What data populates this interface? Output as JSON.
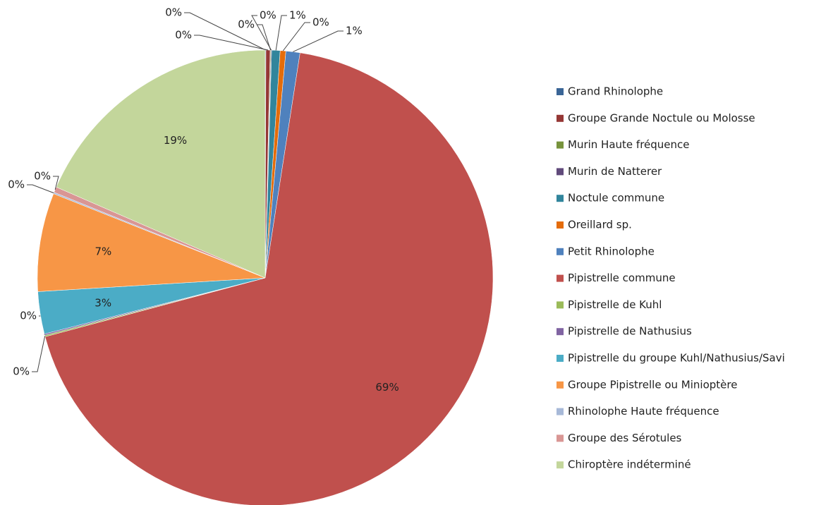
{
  "chart_data": {
    "type": "pie",
    "categories": [
      "Grand Rhinolophe",
      "Groupe Grande Noctule ou Molosse",
      "Murin Haute fréquence",
      "Murin de Natterer",
      "Noctule commune",
      "Oreillard sp.",
      "Petit Rhinolophe",
      "Pipistrelle commune",
      "Pipistrelle de Kuhl",
      "Pipistrelle de Nathusius",
      "Pipistrelle du groupe Kuhl/Nathusius/Savi",
      "Groupe Pipistrelle ou Minioptère",
      "Rhinolophe Haute fréquence",
      "Groupe des Sérotules",
      "Chiroptère indéterminé"
    ],
    "values": [
      0.05,
      0.3,
      0.05,
      0.05,
      0.6,
      0.4,
      1.0,
      68.5,
      0.1,
      0.1,
      3.0,
      7.0,
      0.1,
      0.4,
      18.5
    ],
    "value_labels": [
      "0%",
      "0%",
      "0%",
      "0%",
      "1%",
      "0%",
      "1%",
      "69%",
      "0%",
      "0%",
      "3%",
      "7%",
      "0%",
      "0%",
      "19%"
    ],
    "colors": [
      "#3a6596",
      "#953735",
      "#77933c",
      "#604a7b",
      "#31859c",
      "#e46c0a",
      "#4f81bd",
      "#c0504d",
      "#9bbb59",
      "#8064a2",
      "#4bacc6",
      "#f79646",
      "#a7b9d8",
      "#d99694",
      "#c3d69b"
    ],
    "legend": "right"
  }
}
